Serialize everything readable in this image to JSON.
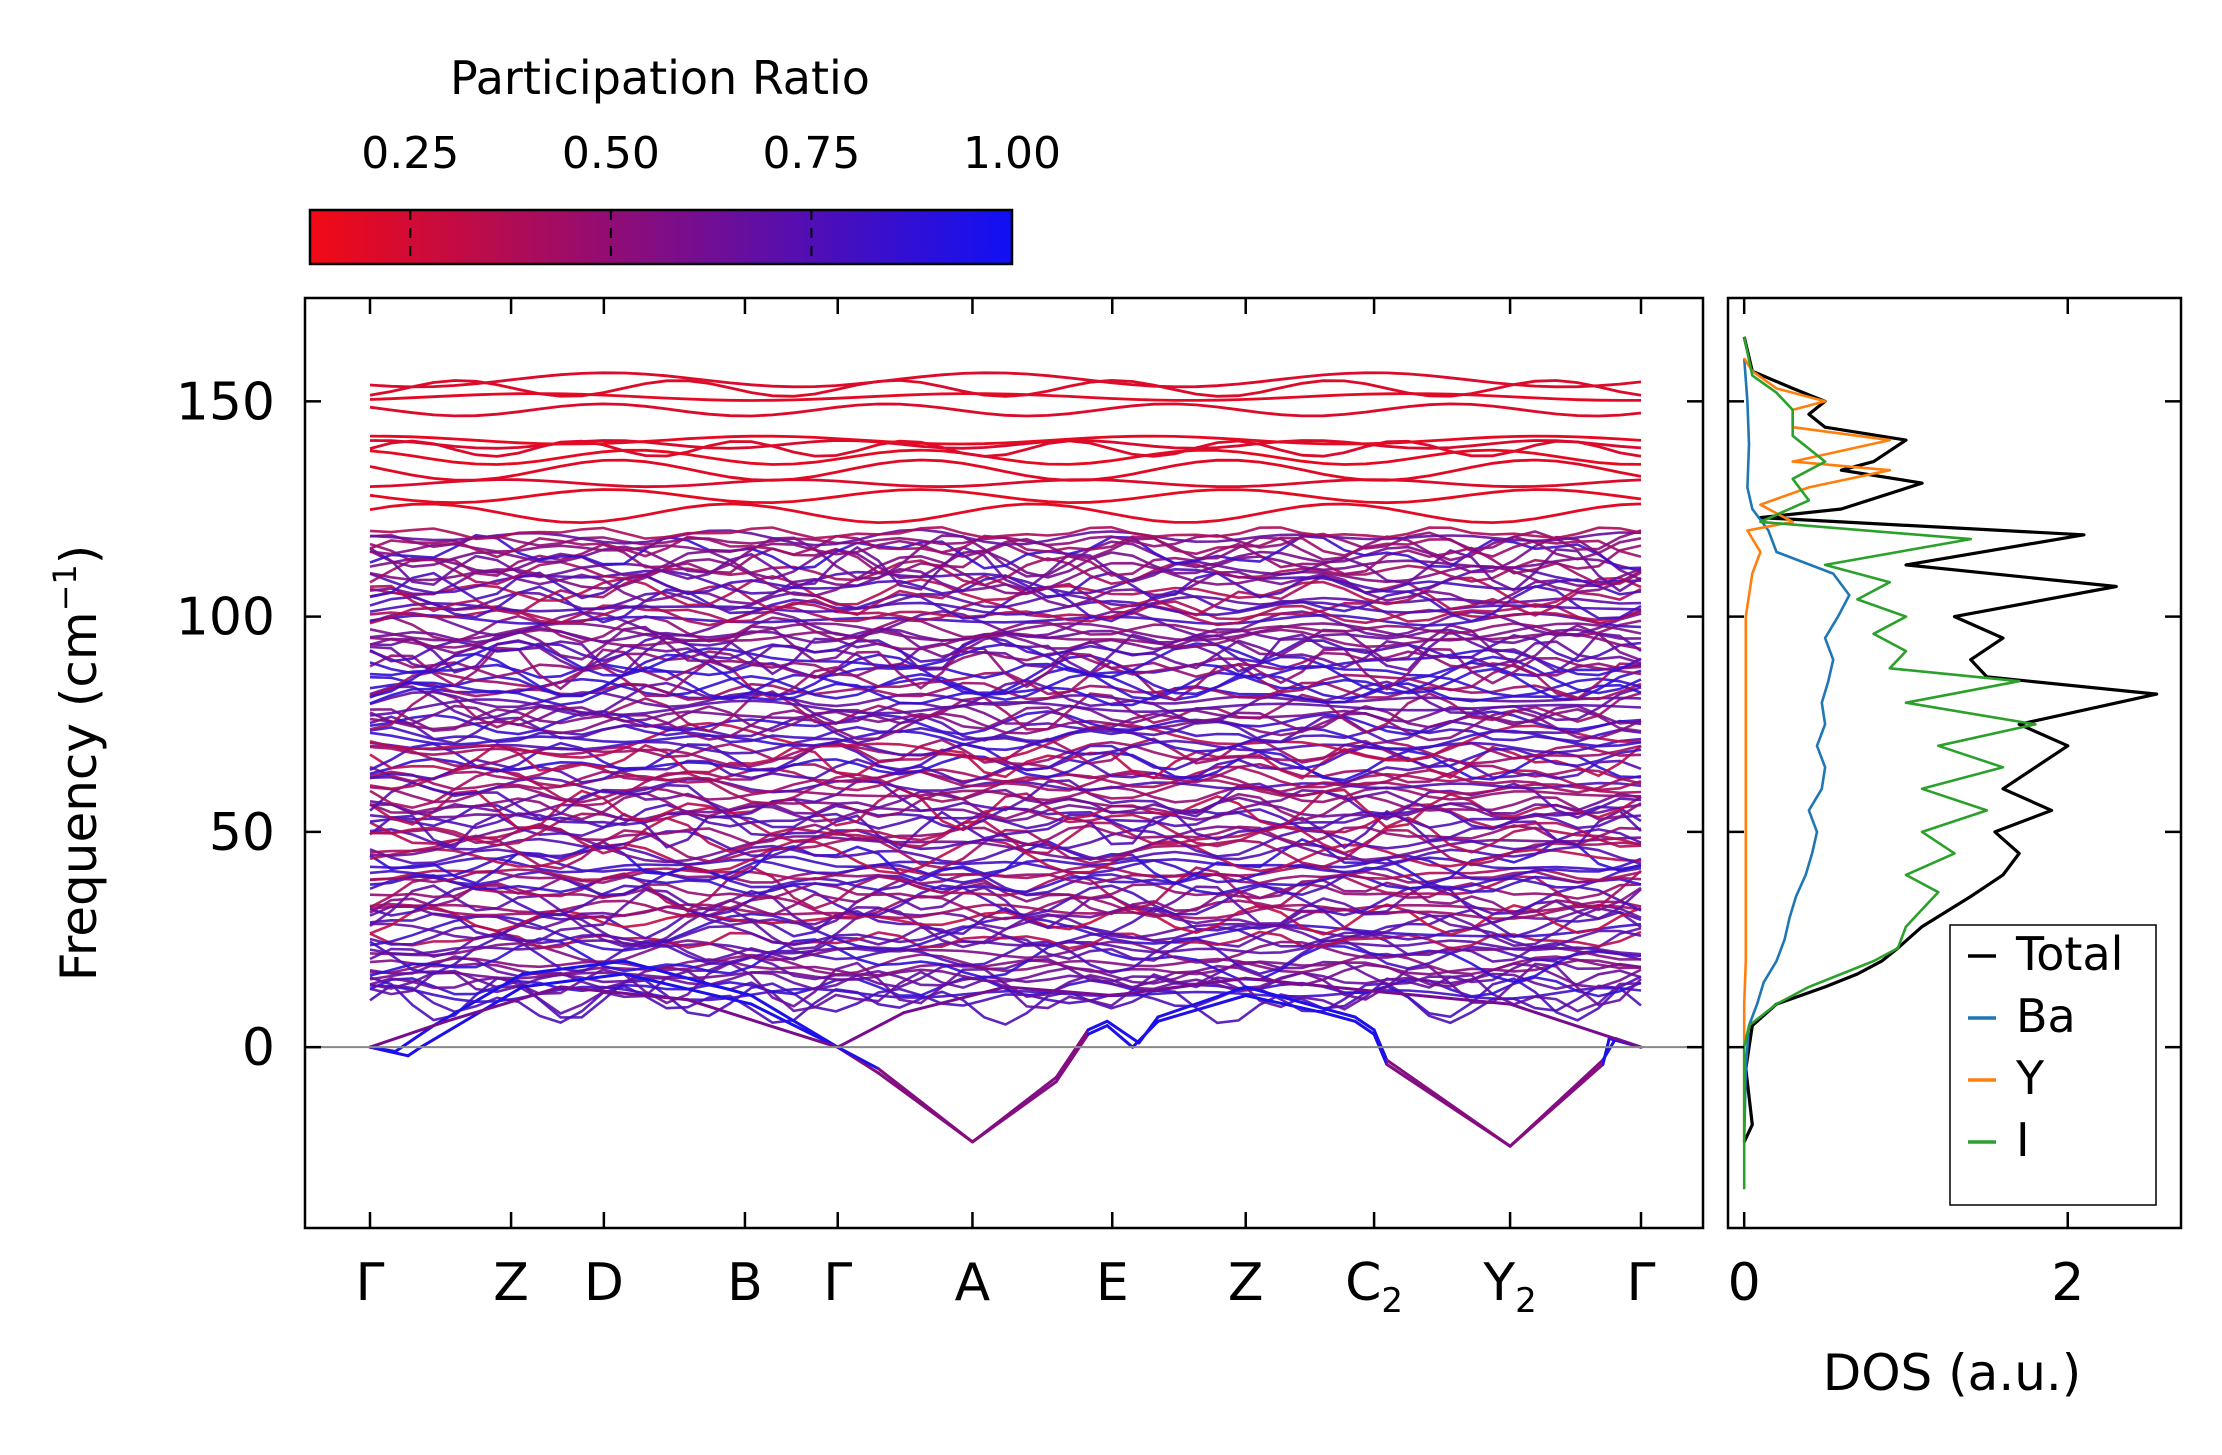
{
  "chart_data": [
    {
      "type": "line",
      "subtype": "phonon-band-structure",
      "title": "",
      "xlabel": "",
      "ylabel": "Frequency (cm⁻¹)",
      "ylabel_parts": {
        "base": "Frequency (cm",
        "sup": "−1",
        "close": ")"
      },
      "ylim": [
        -42,
        174
      ],
      "yticks": [
        "150",
        "100",
        "50",
        "0"
      ],
      "ytick_values": [
        150,
        100,
        50,
        0
      ],
      "high_symmetry_points": [
        {
          "label": "Γ",
          "sub": "",
          "x": 0.0
        },
        {
          "label": "Z",
          "sub": "",
          "x": 0.111
        },
        {
          "label": "D",
          "sub": "",
          "x": 0.184
        },
        {
          "label": "B",
          "sub": "",
          "x": 0.295
        },
        {
          "label": "Γ",
          "sub": "",
          "x": 0.368
        },
        {
          "label": "A",
          "sub": "",
          "x": 0.474
        },
        {
          "label": "E",
          "sub": "",
          "x": 0.584
        },
        {
          "label": "Z",
          "sub": "",
          "x": 0.689
        },
        {
          "label": "C",
          "sub": "2",
          "x": 0.79
        },
        {
          "label": "Y",
          "sub": "2",
          "x": 0.897
        },
        {
          "label": "Γ",
          "sub": "",
          "x": 1.0
        }
      ],
      "colorbar": {
        "title": "Participation Ratio",
        "range": [
          0.125,
          1.0
        ],
        "ticks": [
          "0.25",
          "0.50",
          "0.75",
          "1.00"
        ],
        "tick_values": [
          0.25,
          0.5,
          0.75,
          1.0
        ],
        "colors": [
          "#f20a14",
          "#1010f5"
        ]
      },
      "acoustic_branches": [
        {
          "name": "soft-branch-1",
          "points": [
            [
              0.0,
              0
            ],
            [
              0.03,
              -2
            ],
            [
              0.04,
              0
            ],
            [
              0.12,
              14
            ],
            [
              0.2,
              17
            ],
            [
              0.3,
              10
            ],
            [
              0.368,
              0
            ],
            [
              0.4,
              -6
            ],
            [
              0.474,
              -22
            ],
            [
              0.54,
              -8
            ],
            [
              0.565,
              3
            ],
            [
              0.58,
              5
            ],
            [
              0.6,
              0
            ],
            [
              0.62,
              6
            ],
            [
              0.689,
              12
            ],
            [
              0.75,
              8
            ],
            [
              0.775,
              6
            ],
            [
              0.79,
              3
            ],
            [
              0.8,
              -4
            ],
            [
              0.897,
              -23
            ],
            [
              0.97,
              -4
            ],
            [
              0.975,
              2
            ],
            [
              1.0,
              0
            ]
          ]
        },
        {
          "name": "soft-branch-2",
          "points": [
            [
              0.0,
              0
            ],
            [
              0.02,
              -1
            ],
            [
              0.05,
              5
            ],
            [
              0.12,
              17
            ],
            [
              0.2,
              20
            ],
            [
              0.3,
              12
            ],
            [
              0.368,
              0
            ],
            [
              0.4,
              -5
            ],
            [
              0.474,
              -22
            ],
            [
              0.54,
              -7
            ],
            [
              0.565,
              4
            ],
            [
              0.58,
              6
            ],
            [
              0.605,
              1
            ],
            [
              0.62,
              7
            ],
            [
              0.689,
              14
            ],
            [
              0.75,
              9
            ],
            [
              0.775,
              7
            ],
            [
              0.79,
              4
            ],
            [
              0.8,
              -3
            ],
            [
              0.897,
              -23
            ],
            [
              0.97,
              -3
            ],
            [
              0.98,
              2
            ],
            [
              1.0,
              0
            ]
          ]
        },
        {
          "name": "soft-branch-3",
          "points": [
            [
              0.0,
              0
            ],
            [
              0.06,
              6
            ],
            [
              0.15,
              14
            ],
            [
              0.25,
              11
            ],
            [
              0.368,
              0
            ],
            [
              0.42,
              8
            ],
            [
              0.5,
              14
            ],
            [
              0.584,
              12
            ],
            [
              0.689,
              16
            ],
            [
              0.79,
              13
            ],
            [
              0.897,
              10
            ],
            [
              1.0,
              0
            ]
          ]
        }
      ],
      "band_region": {
        "dense_range": [
          10,
          120
        ],
        "dense_band_count": 120,
        "upper_bands": [
          124,
          128,
          131,
          134,
          137,
          139,
          140,
          141,
          148,
          151,
          153,
          155
        ]
      }
    },
    {
      "type": "line",
      "subtype": "density-of-states",
      "title": "",
      "xlabel": "DOS (a.u.)",
      "ylabel": "",
      "xlim": [
        -0.1,
        2.7
      ],
      "ylim": [
        -42,
        174
      ],
      "xticks": [
        "0",
        "2"
      ],
      "xtick_values": [
        0,
        2
      ],
      "legend_position": "lower-right",
      "series": [
        {
          "name": "Total",
          "color": "#000000",
          "points": [
            [
              0,
              -22
            ],
            [
              0.05,
              -18
            ],
            [
              0.01,
              -5
            ],
            [
              0.05,
              5
            ],
            [
              0.2,
              10
            ],
            [
              0.35,
              12
            ],
            [
              0.5,
              14
            ],
            [
              0.7,
              17
            ],
            [
              0.85,
              20
            ],
            [
              0.95,
              23
            ],
            [
              1.1,
              28
            ],
            [
              1.4,
              35
            ],
            [
              1.6,
              40
            ],
            [
              1.7,
              45
            ],
            [
              1.55,
              50
            ],
            [
              1.9,
              55
            ],
            [
              1.6,
              60
            ],
            [
              1.8,
              65
            ],
            [
              2.0,
              70
            ],
            [
              1.7,
              75
            ],
            [
              2.55,
              82
            ],
            [
              1.5,
              86
            ],
            [
              1.4,
              90
            ],
            [
              1.6,
              95
            ],
            [
              1.3,
              100
            ],
            [
              2.3,
              107
            ],
            [
              1.0,
              112
            ],
            [
              2.1,
              119
            ],
            [
              0.6,
              122
            ],
            [
              0.1,
              123
            ],
            [
              0.6,
              125
            ],
            [
              1.1,
              131
            ],
            [
              0.6,
              134
            ],
            [
              0.8,
              136
            ],
            [
              1.0,
              141
            ],
            [
              0.5,
              144
            ],
            [
              0.4,
              147
            ],
            [
              0.5,
              150
            ],
            [
              0.3,
              153
            ],
            [
              0.05,
              157
            ],
            [
              0,
              165
            ]
          ]
        },
        {
          "name": "Ba",
          "color": "#1f77b4",
          "points": [
            [
              0,
              -22
            ],
            [
              0.01,
              -5
            ],
            [
              0.03,
              5
            ],
            [
              0.08,
              10
            ],
            [
              0.12,
              15
            ],
            [
              0.2,
              20
            ],
            [
              0.25,
              25
            ],
            [
              0.28,
              30
            ],
            [
              0.32,
              35
            ],
            [
              0.38,
              40
            ],
            [
              0.42,
              45
            ],
            [
              0.45,
              50
            ],
            [
              0.4,
              55
            ],
            [
              0.48,
              60
            ],
            [
              0.5,
              65
            ],
            [
              0.45,
              70
            ],
            [
              0.5,
              75
            ],
            [
              0.48,
              80
            ],
            [
              0.52,
              85
            ],
            [
              0.55,
              90
            ],
            [
              0.5,
              95
            ],
            [
              0.58,
              100
            ],
            [
              0.65,
              105
            ],
            [
              0.55,
              110
            ],
            [
              0.2,
              115
            ],
            [
              0.15,
              120
            ],
            [
              0.05,
              125
            ],
            [
              0.02,
              130
            ],
            [
              0.03,
              140
            ],
            [
              0.02,
              150
            ],
            [
              0,
              160
            ]
          ]
        },
        {
          "name": "Y",
          "color": "#ff7f0e",
          "points": [
            [
              0,
              -22
            ],
            [
              0,
              10
            ],
            [
              0.01,
              20
            ],
            [
              0.01,
              40
            ],
            [
              0.01,
              60
            ],
            [
              0.01,
              80
            ],
            [
              0.01,
              100
            ],
            [
              0.05,
              110
            ],
            [
              0.1,
              115
            ],
            [
              0.02,
              120
            ],
            [
              0.3,
              122
            ],
            [
              0.1,
              126
            ],
            [
              0.4,
              130
            ],
            [
              0.9,
              134
            ],
            [
              0.3,
              136
            ],
            [
              0.9,
              141
            ],
            [
              0.3,
              144
            ],
            [
              0.3,
              148
            ],
            [
              0.5,
              150
            ],
            [
              0.2,
              153
            ],
            [
              0.05,
              157
            ],
            [
              0,
              160
            ]
          ]
        },
        {
          "name": "I",
          "color": "#2ca02c",
          "points": [
            [
              0,
              -33
            ],
            [
              0,
              -10
            ],
            [
              0,
              0
            ],
            [
              0.03,
              5
            ],
            [
              0.2,
              10
            ],
            [
              0.4,
              14
            ],
            [
              0.6,
              17
            ],
            [
              0.8,
              20
            ],
            [
              0.95,
              23
            ],
            [
              1.0,
              28
            ],
            [
              1.1,
              32
            ],
            [
              1.2,
              36
            ],
            [
              1.0,
              40
            ],
            [
              1.3,
              45
            ],
            [
              1.1,
              50
            ],
            [
              1.5,
              55
            ],
            [
              1.1,
              60
            ],
            [
              1.6,
              65
            ],
            [
              1.2,
              70
            ],
            [
              1.8,
              75
            ],
            [
              1.0,
              80
            ],
            [
              1.7,
              85
            ],
            [
              0.9,
              88
            ],
            [
              1.0,
              92
            ],
            [
              0.8,
              96
            ],
            [
              1.0,
              100
            ],
            [
              0.7,
              104
            ],
            [
              0.9,
              108
            ],
            [
              0.5,
              112
            ],
            [
              1.4,
              118
            ],
            [
              0.1,
              122
            ],
            [
              0.4,
              127
            ],
            [
              0.3,
              132
            ],
            [
              0.5,
              136
            ],
            [
              0.3,
              142
            ],
            [
              0.3,
              148
            ],
            [
              0.2,
              152
            ],
            [
              0.05,
              156
            ],
            [
              0,
              165
            ]
          ]
        }
      ]
    }
  ]
}
